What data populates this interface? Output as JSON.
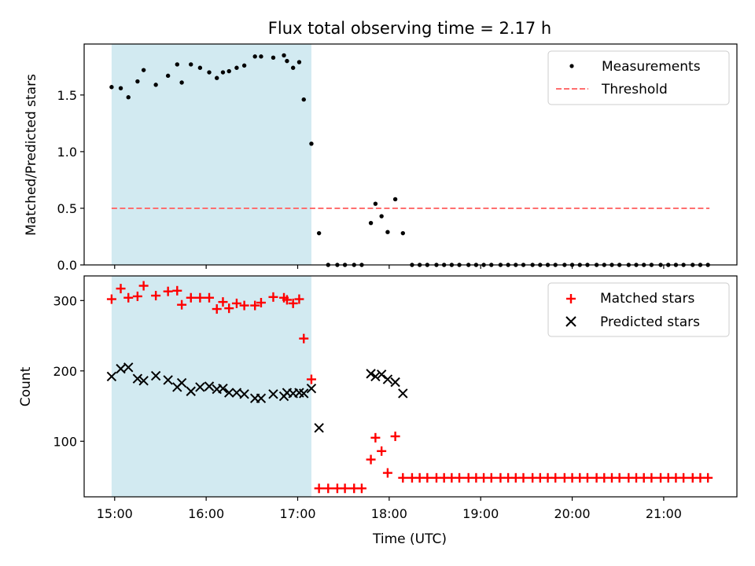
{
  "chart_data": [
    {
      "type": "scatter",
      "title": "Flux total observing time = 2.17 h",
      "xlabel": "",
      "ylabel": "Matched/Predicted stars",
      "x_unit": "time (UTC)",
      "xlim": [
        "14:40",
        "21:48"
      ],
      "ylim": [
        0,
        1.95
      ],
      "yticks": [
        {
          "value": 0.0,
          "label": "0.0"
        },
        {
          "value": 0.5,
          "label": "0.5"
        },
        {
          "value": 1.0,
          "label": "1.0"
        },
        {
          "value": 1.5,
          "label": "1.5"
        }
      ],
      "shaded_span": {
        "start": "14:58",
        "end": "17:09",
        "color": "#add8e6"
      },
      "threshold": {
        "name": "Threshold",
        "value": 0.5,
        "start": "14:58",
        "end": "21:30",
        "color": "#ff6f6f",
        "style": "dashed"
      },
      "legend": {
        "placement": "top-right",
        "entries": [
          "Measurements",
          "Threshold"
        ]
      },
      "series": [
        {
          "name": "Measurements",
          "marker": "dot",
          "color": "#000000",
          "points": [
            [
              "14:58",
              1.57
            ],
            [
              "15:04",
              1.56
            ],
            [
              "15:09",
              1.48
            ],
            [
              "15:15",
              1.62
            ],
            [
              "15:19",
              1.72
            ],
            [
              "15:27",
              1.59
            ],
            [
              "15:35",
              1.67
            ],
            [
              "15:41",
              1.77
            ],
            [
              "15:44",
              1.61
            ],
            [
              "15:50",
              1.77
            ],
            [
              "15:56",
              1.74
            ],
            [
              "16:02",
              1.7
            ],
            [
              "16:07",
              1.65
            ],
            [
              "16:11",
              1.7
            ],
            [
              "16:15",
              1.71
            ],
            [
              "16:20",
              1.74
            ],
            [
              "16:25",
              1.76
            ],
            [
              "16:32",
              1.84
            ],
            [
              "16:36",
              1.84
            ],
            [
              "16:44",
              1.83
            ],
            [
              "16:51",
              1.85
            ],
            [
              "16:53",
              1.8
            ],
            [
              "16:57",
              1.74
            ],
            [
              "17:01",
              1.79
            ],
            [
              "17:04",
              1.46
            ],
            [
              "17:09",
              1.07
            ],
            [
              "17:14",
              0.28
            ],
            [
              "17:20",
              0.0
            ],
            [
              "17:26",
              0.0
            ],
            [
              "17:31",
              0.0
            ],
            [
              "17:37",
              0.0
            ],
            [
              "17:42",
              0.0
            ],
            [
              "17:48",
              0.37
            ],
            [
              "17:51",
              0.54
            ],
            [
              "17:55",
              0.43
            ],
            [
              "17:59",
              0.29
            ],
            [
              "18:04",
              0.58
            ],
            [
              "18:09",
              0.28
            ],
            [
              "18:15",
              0.0
            ],
            [
              "18:20",
              0.0
            ],
            [
              "18:25",
              0.0
            ],
            [
              "18:31",
              0.0
            ],
            [
              "18:36",
              0.0
            ],
            [
              "18:41",
              0.0
            ],
            [
              "18:46",
              0.0
            ],
            [
              "18:52",
              0.0
            ],
            [
              "18:57",
              0.0
            ],
            [
              "19:02",
              0.0
            ],
            [
              "19:07",
              0.0
            ],
            [
              "19:13",
              0.0
            ],
            [
              "19:18",
              0.0
            ],
            [
              "19:23",
              0.0
            ],
            [
              "19:28",
              0.0
            ],
            [
              "19:34",
              0.0
            ],
            [
              "19:39",
              0.0
            ],
            [
              "19:44",
              0.0
            ],
            [
              "19:49",
              0.0
            ],
            [
              "19:55",
              0.0
            ],
            [
              "20:00",
              0.0
            ],
            [
              "20:05",
              0.0
            ],
            [
              "20:10",
              0.0
            ],
            [
              "20:16",
              0.0
            ],
            [
              "20:21",
              0.0
            ],
            [
              "20:26",
              0.0
            ],
            [
              "20:31",
              0.0
            ],
            [
              "20:37",
              0.0
            ],
            [
              "20:42",
              0.0
            ],
            [
              "20:47",
              0.0
            ],
            [
              "20:52",
              0.0
            ],
            [
              "20:58",
              0.0
            ],
            [
              "21:03",
              0.0
            ],
            [
              "21:08",
              0.0
            ],
            [
              "21:13",
              0.0
            ],
            [
              "21:19",
              0.0
            ],
            [
              "21:24",
              0.0
            ],
            [
              "21:29",
              0.0
            ]
          ]
        }
      ]
    },
    {
      "type": "scatter",
      "title": "",
      "xlabel": "Time (UTC)",
      "ylabel": "Count",
      "xlim": [
        "14:40",
        "21:48"
      ],
      "ylim": [
        21,
        335
      ],
      "xticks": [
        "15:00",
        "16:00",
        "17:00",
        "18:00",
        "19:00",
        "20:00",
        "21:00"
      ],
      "yticks": [
        {
          "value": 100,
          "label": "100"
        },
        {
          "value": 200,
          "label": "200"
        },
        {
          "value": 300,
          "label": "300"
        }
      ],
      "shaded_span": {
        "start": "14:58",
        "end": "17:09",
        "color": "#add8e6"
      },
      "legend": {
        "placement": "top-right",
        "entries": [
          "Matched stars",
          "Predicted stars"
        ]
      },
      "series": [
        {
          "name": "Matched stars",
          "marker": "plus",
          "color": "#ff0000",
          "points": [
            [
              "14:58",
              302
            ],
            [
              "15:04",
              317
            ],
            [
              "15:09",
              304
            ],
            [
              "15:15",
              306
            ],
            [
              "15:19",
              321
            ],
            [
              "15:27",
              307
            ],
            [
              "15:35",
              313
            ],
            [
              "15:41",
              314
            ],
            [
              "15:44",
              294
            ],
            [
              "15:50",
              304
            ],
            [
              "15:56",
              304
            ],
            [
              "16:02",
              304
            ],
            [
              "16:07",
              288
            ],
            [
              "16:11",
              298
            ],
            [
              "16:15",
              289
            ],
            [
              "16:20",
              296
            ],
            [
              "16:25",
              293
            ],
            [
              "16:32",
              293
            ],
            [
              "16:36",
              297
            ],
            [
              "16:44",
              305
            ],
            [
              "16:51",
              304
            ],
            [
              "16:53",
              301
            ],
            [
              "16:57",
              296
            ],
            [
              "17:01",
              302
            ],
            [
              "17:04",
              246
            ],
            [
              "17:09",
              188
            ],
            [
              "17:14",
              33
            ],
            [
              "17:20",
              33
            ],
            [
              "17:26",
              33
            ],
            [
              "17:31",
              33
            ],
            [
              "17:37",
              33
            ],
            [
              "17:42",
              33
            ],
            [
              "17:48",
              74
            ],
            [
              "17:51",
              105
            ],
            [
              "17:55",
              86
            ],
            [
              "17:59",
              55
            ],
            [
              "18:04",
              107
            ],
            [
              "18:09",
              48
            ],
            [
              "18:15",
              48
            ],
            [
              "18:20",
              48
            ],
            [
              "18:25",
              48
            ],
            [
              "18:31",
              48
            ],
            [
              "18:36",
              48
            ],
            [
              "18:41",
              48
            ],
            [
              "18:46",
              48
            ],
            [
              "18:52",
              48
            ],
            [
              "18:57",
              48
            ],
            [
              "19:02",
              48
            ],
            [
              "19:07",
              48
            ],
            [
              "19:13",
              48
            ],
            [
              "19:18",
              48
            ],
            [
              "19:23",
              48
            ],
            [
              "19:28",
              48
            ],
            [
              "19:34",
              48
            ],
            [
              "19:39",
              48
            ],
            [
              "19:44",
              48
            ],
            [
              "19:49",
              48
            ],
            [
              "19:55",
              48
            ],
            [
              "20:00",
              48
            ],
            [
              "20:05",
              48
            ],
            [
              "20:10",
              48
            ],
            [
              "20:16",
              48
            ],
            [
              "20:21",
              48
            ],
            [
              "20:26",
              48
            ],
            [
              "20:31",
              48
            ],
            [
              "20:37",
              48
            ],
            [
              "20:42",
              48
            ],
            [
              "20:47",
              48
            ],
            [
              "20:52",
              48
            ],
            [
              "20:58",
              48
            ],
            [
              "21:03",
              48
            ],
            [
              "21:08",
              48
            ],
            [
              "21:13",
              48
            ],
            [
              "21:19",
              48
            ],
            [
              "21:24",
              48
            ],
            [
              "21:29",
              48
            ]
          ]
        },
        {
          "name": "Predicted stars",
          "marker": "x",
          "color": "#000000",
          "points": [
            [
              "14:58",
              192
            ],
            [
              "15:04",
              203
            ],
            [
              "15:09",
              205
            ],
            [
              "15:15",
              189
            ],
            [
              "15:19",
              186
            ],
            [
              "15:27",
              193
            ],
            [
              "15:35",
              187
            ],
            [
              "15:41",
              177
            ],
            [
              "15:44",
              183
            ],
            [
              "15:50",
              171
            ],
            [
              "15:56",
              177
            ],
            [
              "16:02",
              178
            ],
            [
              "16:07",
              174
            ],
            [
              "16:11",
              175
            ],
            [
              "16:15",
              169
            ],
            [
              "16:20",
              169
            ],
            [
              "16:25",
              167
            ],
            [
              "16:32",
              161
            ],
            [
              "16:36",
              161
            ],
            [
              "16:44",
              167
            ],
            [
              "16:51",
              164
            ],
            [
              "16:53",
              169
            ],
            [
              "16:57",
              168
            ],
            [
              "17:01",
              169
            ],
            [
              "17:04",
              168
            ],
            [
              "17:09",
              175
            ],
            [
              "17:14",
              119
            ],
            [
              "17:48",
              196
            ],
            [
              "17:51",
              192
            ],
            [
              "17:55",
              195
            ],
            [
              "17:59",
              188
            ],
            [
              "18:04",
              184
            ],
            [
              "18:09",
              168
            ]
          ]
        }
      ]
    }
  ]
}
